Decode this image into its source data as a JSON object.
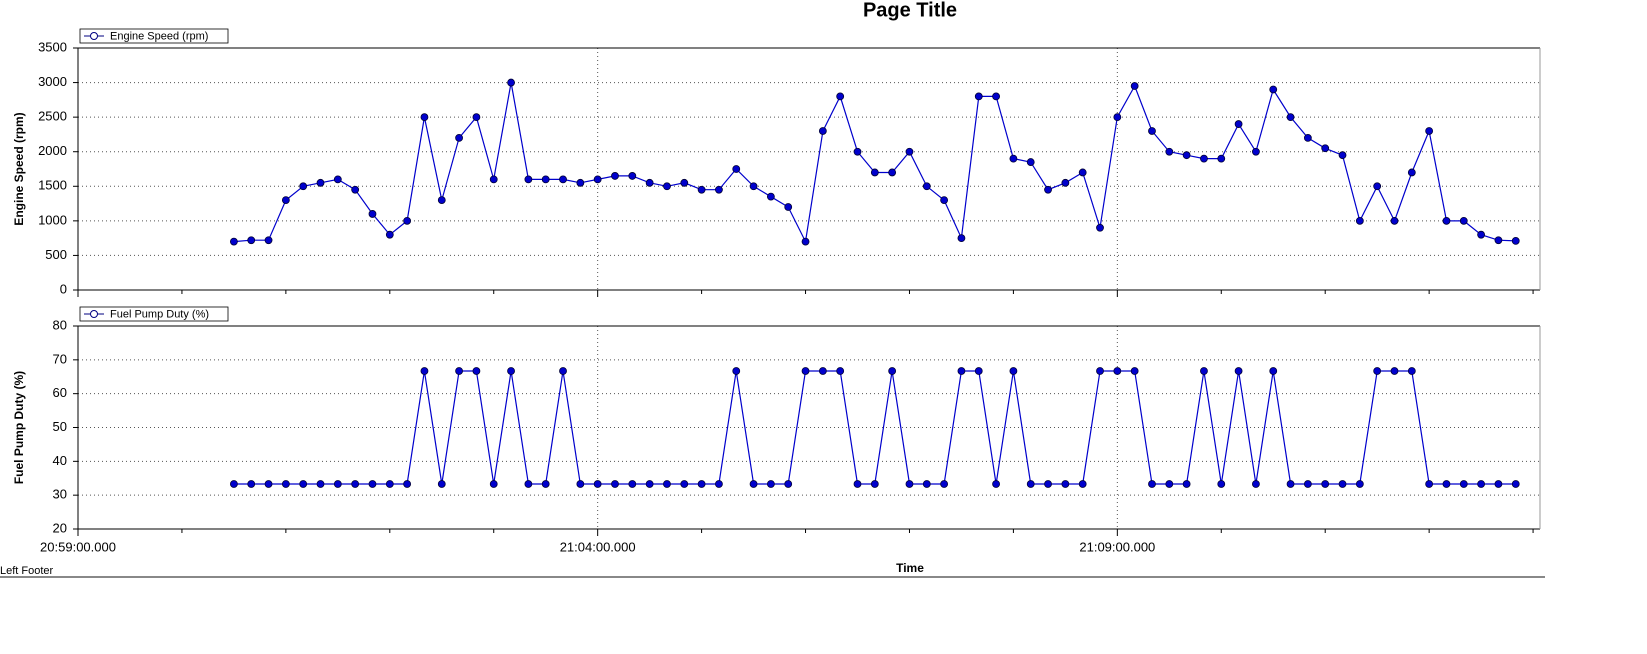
{
  "chart_data": {
    "title": "Page Title",
    "footer": "Left Footer",
    "xlabel": "Time",
    "xlim": [
      "20:59:00.000",
      "21:13:04.000"
    ],
    "xticks": [
      "20:59:00.000",
      "21:04:00.000",
      "21:09:00.000"
    ],
    "xminor": [
      "21:00:00.000",
      "21:01:00.000",
      "21:02:00.000",
      "21:03:00.000",
      "21:05:00.000",
      "21:06:00.000",
      "21:07:00.000",
      "21:08:00.000",
      "21:10:00.000",
      "21:11:00.000",
      "21:12:00.000",
      "21:13:00.000"
    ],
    "x": [
      "21:00:30",
      "21:00:40",
      "21:00:50",
      "21:01:00",
      "21:01:10",
      "21:01:20",
      "21:01:30",
      "21:01:40",
      "21:01:50",
      "21:02:00",
      "21:02:10",
      "21:02:20",
      "21:02:30",
      "21:02:40",
      "21:02:50",
      "21:03:00",
      "21:03:10",
      "21:03:20",
      "21:03:30",
      "21:03:40",
      "21:03:50",
      "21:04:00",
      "21:04:10",
      "21:04:20",
      "21:04:30",
      "21:04:40",
      "21:04:50",
      "21:05:00",
      "21:05:10",
      "21:05:20",
      "21:05:30",
      "21:05:40",
      "21:05:50",
      "21:06:00",
      "21:06:10",
      "21:06:20",
      "21:06:30",
      "21:06:40",
      "21:06:50",
      "21:07:00",
      "21:07:10",
      "21:07:20",
      "21:07:30",
      "21:07:40",
      "21:07:50",
      "21:08:00",
      "21:08:10",
      "21:08:20",
      "21:08:30",
      "21:08:40",
      "21:08:50",
      "21:09:00",
      "21:09:10",
      "21:09:20",
      "21:09:30",
      "21:09:40",
      "21:09:50",
      "21:10:00",
      "21:10:10",
      "21:10:20",
      "21:10:30",
      "21:10:40",
      "21:10:50",
      "21:11:00",
      "21:11:10",
      "21:11:20",
      "21:11:30",
      "21:11:40",
      "21:11:50",
      "21:12:00",
      "21:12:10",
      "21:12:20",
      "21:12:30",
      "21:12:40",
      "21:12:50"
    ],
    "panels": [
      {
        "type": "line",
        "ylabel": "Engine Speed (rpm)",
        "ylim": [
          0,
          3500
        ],
        "yticks": [
          0,
          500,
          1000,
          1500,
          2000,
          2500,
          3000,
          3500
        ],
        "grid": true,
        "series": [
          {
            "name": "Engine Speed (rpm)",
            "color": "#0000cc",
            "values": [
              700,
              720,
              720,
              1300,
              1500,
              1550,
              1600,
              1450,
              1100,
              800,
              1000,
              2500,
              1300,
              2200,
              2500,
              1600,
              3000,
              1600,
              1600,
              1600,
              1550,
              1600,
              1650,
              1650,
              1550,
              1500,
              1550,
              1450,
              1450,
              1750,
              1500,
              1350,
              1200,
              700,
              2300,
              2800,
              2000,
              1700,
              1700,
              2000,
              1500,
              1300,
              750,
              2800,
              2800,
              1900,
              1850,
              1450,
              1550,
              1700,
              900,
              2500,
              2950,
              2300,
              2000,
              1950,
              1900,
              1900,
              2400,
              2000,
              2900,
              2500,
              2200,
              2050,
              1950,
              1000,
              1500,
              1000,
              1700,
              2300,
              1000,
              1000,
              800,
              720,
              710
            ]
          }
        ]
      },
      {
        "type": "line",
        "ylabel": "Fuel Pump Duty (%)",
        "ylim": [
          20,
          80
        ],
        "yticks": [
          20,
          30,
          40,
          50,
          60,
          70,
          80
        ],
        "grid": true,
        "series": [
          {
            "name": "Fuel Pump Duty (%)",
            "color": "#0000cc",
            "values": [
              33.3,
              33.3,
              33.3,
              33.3,
              33.3,
              33.3,
              33.3,
              33.3,
              33.3,
              33.3,
              33.3,
              66.7,
              33.3,
              66.7,
              66.7,
              33.3,
              66.7,
              33.3,
              33.3,
              66.7,
              33.3,
              33.3,
              33.3,
              33.3,
              33.3,
              33.3,
              33.3,
              33.3,
              33.3,
              66.7,
              33.3,
              33.3,
              33.3,
              66.7,
              66.7,
              66.7,
              33.3,
              33.3,
              66.7,
              33.3,
              33.3,
              33.3,
              66.7,
              66.7,
              33.3,
              66.7,
              33.3,
              33.3,
              33.3,
              33.3,
              66.7,
              66.7,
              66.7,
              33.3,
              33.3,
              33.3,
              66.7,
              33.3,
              66.7,
              33.3,
              66.7,
              33.3,
              33.3,
              33.3,
              33.3,
              33.3,
              66.7,
              66.7,
              66.7,
              33.3,
              33.3,
              33.3,
              33.3,
              33.3,
              33.3
            ]
          }
        ]
      }
    ]
  }
}
